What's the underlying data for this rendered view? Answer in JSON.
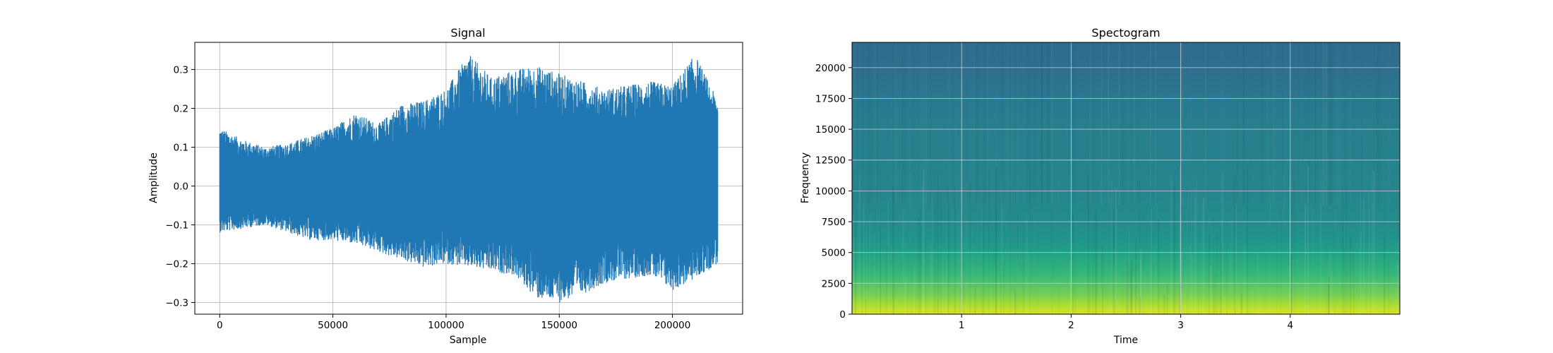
{
  "figure": {
    "background": "#ffffff"
  },
  "chart_data": [
    {
      "type": "line",
      "title": "Signal",
      "xlabel": "Sample",
      "ylabel": "Amplitude",
      "xlim": [
        -11000,
        231000
      ],
      "ylim": [
        -0.33,
        0.37
      ],
      "xticks": [
        0,
        50000,
        100000,
        150000,
        200000
      ],
      "xtick_labels": [
        "0",
        "50000",
        "100000",
        "150000",
        "200000"
      ],
      "yticks": [
        -0.3,
        -0.2,
        -0.1,
        0.0,
        0.1,
        0.2,
        0.3
      ],
      "ytick_labels": [
        "−0.3",
        "−0.2",
        "−0.1",
        "0.0",
        "0.1",
        "0.2",
        "0.3"
      ],
      "grid": true,
      "color": "#1f77b4",
      "series": [
        {
          "name": "",
          "x": [
            0,
            10000,
            20000,
            30000,
            40000,
            50000,
            60000,
            70000,
            80000,
            90000,
            100000,
            110000,
            120000,
            130000,
            140000,
            150000,
            160000,
            170000,
            180000,
            190000,
            200000,
            210000,
            220000
          ],
          "y_max": [
            0.15,
            0.12,
            0.1,
            0.11,
            0.13,
            0.15,
            0.19,
            0.16,
            0.21,
            0.22,
            0.25,
            0.34,
            0.28,
            0.3,
            0.31,
            0.29,
            0.27,
            0.25,
            0.26,
            0.27,
            0.26,
            0.34,
            0.22
          ],
          "y_min": [
            -0.12,
            -0.11,
            -0.1,
            -0.12,
            -0.14,
            -0.14,
            -0.15,
            -0.17,
            -0.19,
            -0.21,
            -0.2,
            -0.21,
            -0.22,
            -0.23,
            -0.29,
            -0.3,
            -0.28,
            -0.25,
            -0.24,
            -0.23,
            -0.27,
            -0.24,
            -0.2
          ]
        }
      ]
    },
    {
      "type": "heatmap",
      "title": "Spectogram",
      "xlabel": "Time",
      "ylabel": "Frequency",
      "xlim": [
        0,
        5
      ],
      "ylim": [
        0,
        22050
      ],
      "xticks": [
        1,
        2,
        3,
        4
      ],
      "xtick_labels": [
        "1",
        "2",
        "3",
        "4"
      ],
      "yticks": [
        0,
        2500,
        5000,
        7500,
        10000,
        12500,
        15000,
        17500,
        20000
      ],
      "ytick_labels": [
        "0",
        "2500",
        "5000",
        "7500",
        "10000",
        "12500",
        "15000",
        "17500",
        "20000"
      ],
      "grid": true,
      "colormap": "viridis",
      "frequency_profile": {
        "frequency": [
          0,
          500,
          1000,
          1500,
          2000,
          2500,
          3000,
          4000,
          5000,
          6000,
          7500,
          10000,
          12500,
          15000,
          17500,
          20000,
          22050
        ],
        "intensity": [
          0.94,
          0.9,
          0.85,
          0.8,
          0.76,
          0.72,
          0.68,
          0.62,
          0.57,
          0.52,
          0.48,
          0.46,
          0.44,
          0.43,
          0.4,
          0.36,
          0.35
        ]
      }
    }
  ]
}
